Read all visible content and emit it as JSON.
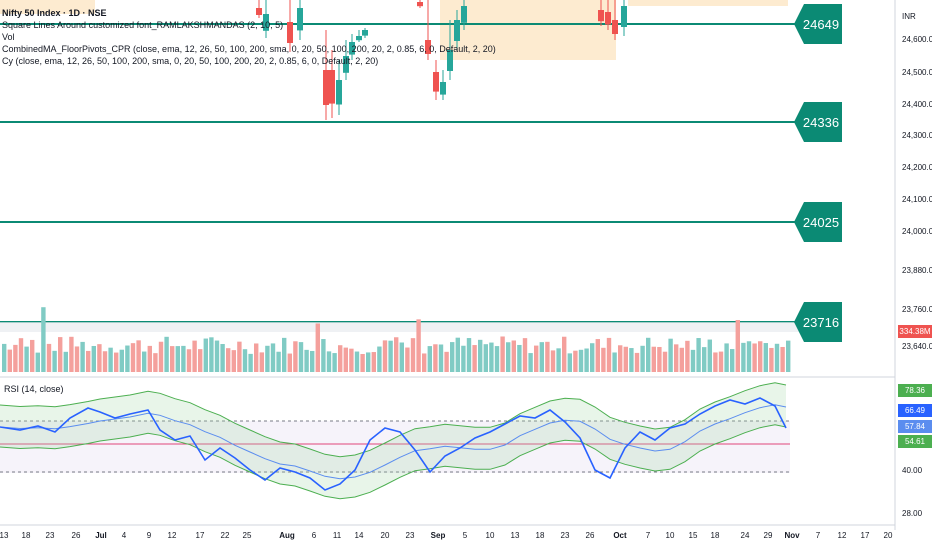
{
  "legend": {
    "title": "Nifty 50 Index · 1D · NSE",
    "line1": "Square Lines Around customized font_RAMLAKSHMANDAS (2, 10, 5)",
    "line2": "Vol",
    "line3": "CombinedMA_FloorPivots_CPR (close, ema, 12, 26, 50, 100, 200, sma, 0, 20, 50, 100, 200, 20, 2, 0.85, 6, 0, Default, 2, 20)",
    "line4": "Cy (close, ema, 12, 26, 50, 100, 200, sma, 0, 20, 50, 100, 200, 20, 2, 0.85, 6, 0, Default, 2, 20)"
  },
  "currency": "INR",
  "levels": [
    "24649",
    "24336",
    "24025",
    "23716"
  ],
  "price_axis": [
    "24,600.00",
    "24,500.00",
    "24,400.00",
    "24,300.00",
    "24,200.00",
    "24,100.00",
    "24,000.00",
    "23,880.00",
    "23,760.00",
    "23,640.00"
  ],
  "volume_tag": "334.38M",
  "rsi": {
    "label": "RSI (14, close)",
    "axis": [
      "40.00",
      "28.00"
    ],
    "tags": [
      "78.36",
      "66.49",
      "57.84",
      "54.61"
    ]
  },
  "dates": [
    "13",
    "18",
    "23",
    "26",
    "Jul",
    "4",
    "9",
    "12",
    "17",
    "22",
    "25",
    "Aug",
    "6",
    "11",
    "14",
    "20",
    "23",
    "Sep",
    "5",
    "10",
    "13",
    "18",
    "23",
    "26",
    "Oct",
    "7",
    "10",
    "15",
    "18",
    "24",
    "29",
    "Nov",
    "7",
    "12",
    "17",
    "20"
  ],
  "colors": {
    "up": "#26a69a",
    "down": "#ef5350",
    "level": "#0b8a74",
    "rsi_line": "#2962ff",
    "band": "#4caf50"
  }
}
